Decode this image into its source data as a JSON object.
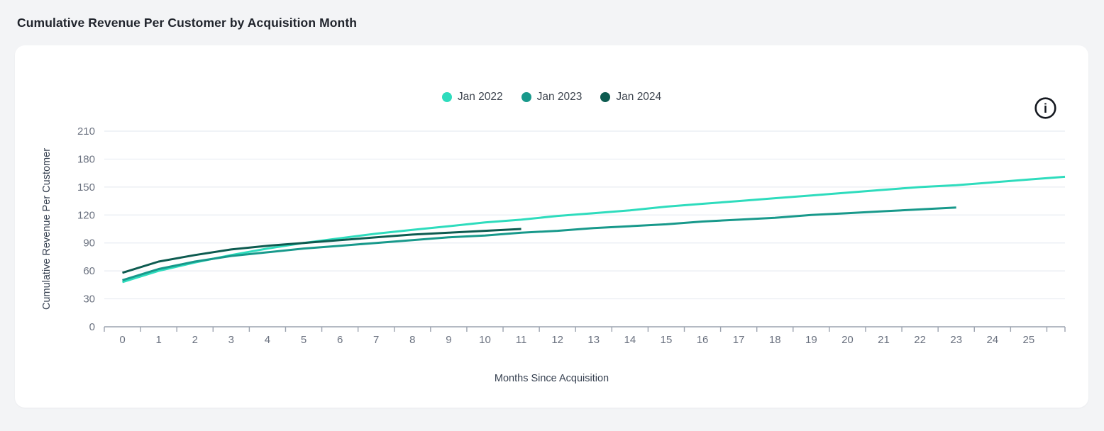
{
  "page": {
    "title": "Cumulative Revenue Per Customer by Acquisition Month"
  },
  "icons": {
    "info_glyph": "i"
  },
  "colors": {
    "page_background": "#f3f4f6",
    "card_background": "#ffffff",
    "grid_line": "#e8ecf2",
    "axis_line": "#9ca3af",
    "tick_label": "#6b7280",
    "axis_title": "#374151",
    "title_text": "#20242c",
    "info_icon": "#14181f"
  },
  "chart_data": {
    "type": "line",
    "title": "Cumulative Revenue Per Customer by Acquisition Month",
    "xlabel": "Months Since Acquisition",
    "ylabel": "Cumulative Revenue Per Customer",
    "x": [
      0,
      1,
      2,
      3,
      4,
      5,
      6,
      7,
      8,
      9,
      10,
      11,
      12,
      13,
      14,
      15,
      16,
      17,
      18,
      19,
      20,
      21,
      22,
      23,
      24,
      25
    ],
    "ylim": [
      0,
      210
    ],
    "yticks": [
      0,
      30,
      60,
      90,
      120,
      150,
      180,
      210
    ],
    "grid": "horizontal-only",
    "legend_position": "top-center",
    "series": [
      {
        "name": "Jan 2022",
        "color": "#2edcbd",
        "extends_to_plot_edge": true,
        "values": [
          48,
          60,
          69,
          77,
          84,
          90,
          95,
          100,
          104,
          108,
          112,
          115,
          119,
          122,
          125,
          129,
          132,
          135,
          138,
          141,
          144,
          147,
          150,
          152,
          155,
          158
        ]
      },
      {
        "name": "Jan 2023",
        "color": "#18998b",
        "extends_to_plot_edge": false,
        "values": [
          50,
          62,
          70,
          76,
          80,
          84,
          87,
          90,
          93,
          96,
          98,
          101,
          103,
          106,
          108,
          110,
          113,
          115,
          117,
          120,
          122,
          124,
          126,
          128
        ]
      },
      {
        "name": "Jan 2024",
        "color": "#0d5b50",
        "extends_to_plot_edge": false,
        "values": [
          58,
          70,
          77,
          83,
          87,
          90,
          93,
          96,
          99,
          101,
          103,
          105
        ]
      }
    ]
  }
}
